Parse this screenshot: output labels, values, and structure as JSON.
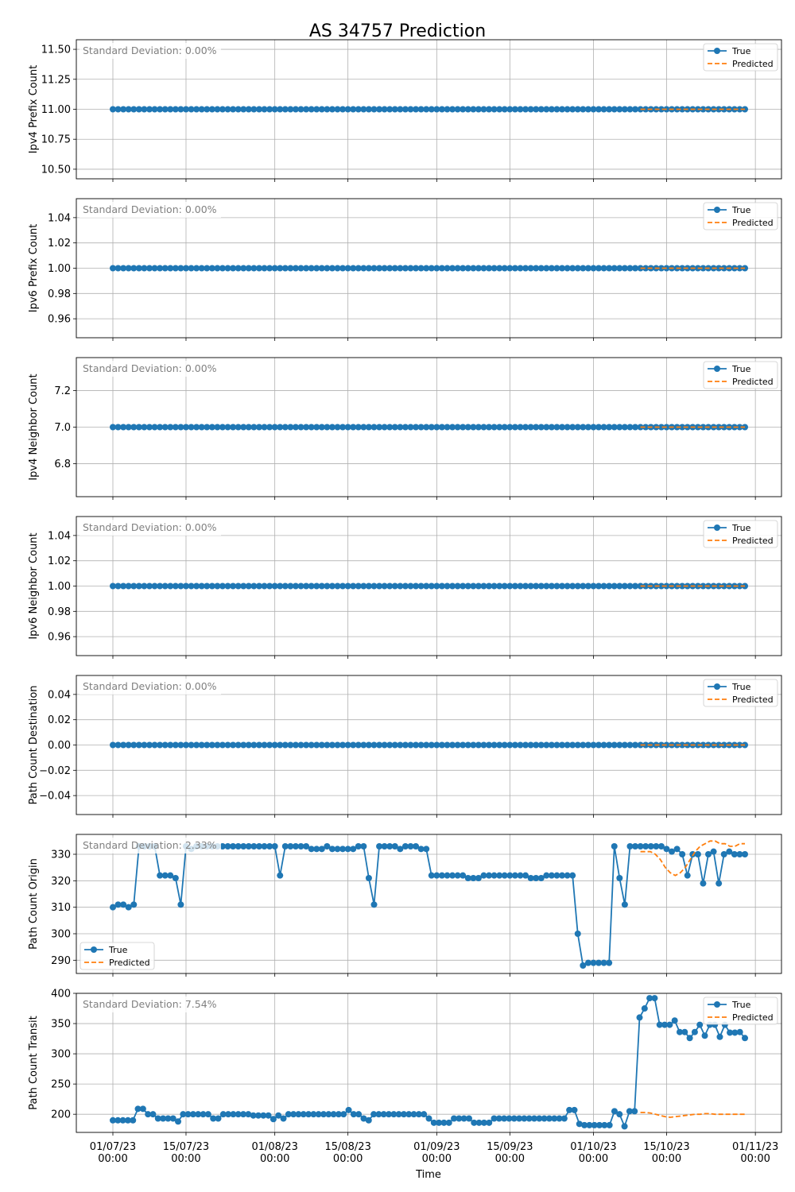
{
  "figure": {
    "title": "AS 34757 Prediction",
    "xlabel": "Time"
  },
  "time_axis": {
    "tick_labels": [
      [
        "01/07/23",
        "00:00"
      ],
      [
        "15/07/23",
        "00:00"
      ],
      [
        "01/08/23",
        "00:00"
      ],
      [
        "15/08/23",
        "00:00"
      ],
      [
        "01/09/23",
        "00:00"
      ],
      [
        "15/09/23",
        "00:00"
      ],
      [
        "01/10/23",
        "00:00"
      ],
      [
        "15/10/23",
        "00:00"
      ],
      [
        "01/11/23",
        "00:00"
      ]
    ],
    "tick_dates": [
      "2023-07-01",
      "2023-07-15",
      "2023-08-01",
      "2023-08-15",
      "2023-09-01",
      "2023-09-15",
      "2023-10-01",
      "2023-10-15",
      "2023-11-01"
    ],
    "range": [
      "2023-06-24",
      "2023-11-06"
    ],
    "true_start": "2023-07-01",
    "true_end": "2023-10-30",
    "predicted_start": "2023-10-10"
  },
  "chart_data": [
    {
      "type": "line",
      "ylabel": "Ipv4 Prefix Count",
      "annotation": "Standard Deviation: 0.00%",
      "ylim": [
        10.42,
        11.58
      ],
      "yticks": [
        10.5,
        10.75,
        11.0,
        11.25,
        11.5
      ],
      "ytick_labels": [
        "10.50",
        "10.75",
        "11.00",
        "11.25",
        "11.50"
      ],
      "legend": [
        "True",
        "Predicted"
      ],
      "legend_position": "upper right",
      "grid": true,
      "series": [
        {
          "name": "True",
          "constant": 11,
          "style": "solid-dots"
        },
        {
          "name": "Predicted",
          "constant": 11,
          "style": "dashed"
        }
      ]
    },
    {
      "type": "line",
      "ylabel": "Ipv6 Prefix Count",
      "annotation": "Standard Deviation: 0.00%",
      "ylim": [
        0.945,
        1.055
      ],
      "yticks": [
        0.96,
        0.98,
        1.0,
        1.02,
        1.04
      ],
      "ytick_labels": [
        "0.96",
        "0.98",
        "1.00",
        "1.02",
        "1.04"
      ],
      "legend": [
        "True",
        "Predicted"
      ],
      "legend_position": "upper right",
      "grid": true,
      "series": [
        {
          "name": "True",
          "constant": 1,
          "style": "solid-dots"
        },
        {
          "name": "Predicted",
          "constant": 1,
          "style": "dashed"
        }
      ]
    },
    {
      "type": "line",
      "ylabel": "Ipv4 Neighbor Count",
      "annotation": "Standard Deviation: 0.00%",
      "ylim": [
        6.62,
        7.38
      ],
      "yticks": [
        6.8,
        7.0,
        7.2
      ],
      "ytick_labels": [
        "6.8",
        "7.0",
        "7.2"
      ],
      "legend": [
        "True",
        "Predicted"
      ],
      "legend_position": "upper right",
      "grid": true,
      "series": [
        {
          "name": "True",
          "constant": 7,
          "style": "solid-dots"
        },
        {
          "name": "Predicted",
          "constant": 7,
          "style": "dashed"
        }
      ]
    },
    {
      "type": "line",
      "ylabel": "Ipv6 Neighbor Count",
      "annotation": "Standard Deviation: 0.00%",
      "ylim": [
        0.945,
        1.055
      ],
      "yticks": [
        0.96,
        0.98,
        1.0,
        1.02,
        1.04
      ],
      "ytick_labels": [
        "0.96",
        "0.98",
        "1.00",
        "1.02",
        "1.04"
      ],
      "legend": [
        "True",
        "Predicted"
      ],
      "legend_position": "upper right",
      "grid": true,
      "series": [
        {
          "name": "True",
          "constant": 1,
          "style": "solid-dots"
        },
        {
          "name": "Predicted",
          "constant": 1,
          "style": "dashed"
        }
      ]
    },
    {
      "type": "line",
      "ylabel": "Path Count Destination",
      "annotation": "Standard Deviation: 0.00%",
      "ylim": [
        -0.055,
        0.055
      ],
      "yticks": [
        -0.04,
        -0.02,
        0.0,
        0.02,
        0.04
      ],
      "ytick_labels": [
        "−0.04",
        "−0.02",
        "0.00",
        "0.02",
        "0.04"
      ],
      "legend": [
        "True",
        "Predicted"
      ],
      "legend_position": "upper right",
      "grid": true,
      "series": [
        {
          "name": "True",
          "constant": 0,
          "style": "solid-dots"
        },
        {
          "name": "Predicted",
          "constant": 0,
          "style": "dashed"
        }
      ]
    },
    {
      "type": "line",
      "ylabel": "Path Count Origin",
      "annotation": "Standard Deviation: 2.33%",
      "ylim": [
        285.0,
        337.5
      ],
      "yticks": [
        290,
        300,
        310,
        320,
        330
      ],
      "ytick_labels": [
        "290",
        "300",
        "310",
        "320",
        "330"
      ],
      "legend": [
        "True",
        "Predicted"
      ],
      "legend_position": "lower left",
      "grid": true,
      "series": [
        {
          "name": "True",
          "style": "solid-dots",
          "values": [
            310,
            311,
            311,
            310,
            311,
            333,
            333,
            333,
            333,
            322,
            322,
            322,
            321,
            311,
            333,
            332,
            333,
            333,
            333,
            333,
            333,
            333,
            333,
            333,
            333,
            333,
            333,
            333,
            333,
            333,
            333,
            333,
            322,
            333,
            333,
            333,
            333,
            333,
            332,
            332,
            332,
            333,
            332,
            332,
            332,
            332,
            332,
            333,
            333,
            321,
            311,
            333,
            333,
            333,
            333,
            332,
            333,
            333,
            333,
            332,
            332,
            322,
            322,
            322,
            322,
            322,
            322,
            322,
            321,
            321,
            321,
            322,
            322,
            322,
            322,
            322,
            322,
            322,
            322,
            322,
            321,
            321,
            321,
            322,
            322,
            322,
            322,
            322,
            322,
            300,
            288,
            289,
            289,
            289,
            289,
            289,
            333,
            321,
            311,
            333,
            333,
            333,
            333,
            333,
            333,
            333,
            332,
            331,
            332,
            330,
            322,
            330,
            330,
            319,
            330,
            331,
            319,
            330,
            331,
            330,
            330,
            330
          ]
        },
        {
          "name": "Predicted",
          "style": "dashed",
          "values": [
            331,
            331,
            331,
            330,
            328,
            325,
            323,
            322,
            323,
            325,
            328,
            331,
            333,
            334,
            335,
            335,
            334,
            334,
            333,
            333,
            334,
            334
          ]
        }
      ]
    },
    {
      "type": "line",
      "ylabel": "Path Count Transit",
      "annotation": "Standard Deviation: 7.54%",
      "ylim": [
        170,
        400
      ],
      "yticks": [
        200,
        250,
        300,
        350,
        400
      ],
      "ytick_labels": [
        "200",
        "250",
        "300",
        "350",
        "400"
      ],
      "legend": [
        "True",
        "Predicted"
      ],
      "legend_position": "upper right",
      "grid": true,
      "series": [
        {
          "name": "True",
          "style": "solid-dots",
          "values": [
            190,
            190,
            190,
            190,
            190,
            209,
            209,
            200,
            200,
            193,
            193,
            193,
            193,
            188,
            200,
            200,
            200,
            200,
            200,
            200,
            193,
            193,
            200,
            200,
            200,
            200,
            200,
            200,
            198,
            198,
            198,
            198,
            192,
            198,
            193,
            200,
            200,
            200,
            200,
            200,
            200,
            200,
            200,
            200,
            200,
            200,
            200,
            207,
            200,
            200,
            193,
            190,
            200,
            200,
            200,
            200,
            200,
            200,
            200,
            200,
            200,
            200,
            200,
            193,
            186,
            186,
            186,
            186,
            193,
            193,
            193,
            193,
            186,
            186,
            186,
            186,
            193,
            193,
            193,
            193,
            193,
            193,
            193,
            193,
            193,
            193,
            193,
            193,
            193,
            193,
            193,
            207,
            207,
            184,
            182,
            182,
            182,
            182,
            182,
            182,
            205,
            200,
            180,
            205,
            205,
            360,
            375,
            392,
            392,
            348,
            348,
            348,
            355,
            336,
            336,
            326,
            336,
            348,
            330,
            348,
            348,
            328,
            348,
            335,
            335,
            336,
            326
          ]
        },
        {
          "name": "Predicted",
          "style": "dashed",
          "values": [
            203,
            203,
            202,
            200,
            198,
            196,
            195,
            196,
            197,
            198,
            199,
            200,
            200,
            201,
            201,
            200,
            200,
            200,
            200,
            200,
            200,
            200
          ]
        }
      ]
    }
  ]
}
